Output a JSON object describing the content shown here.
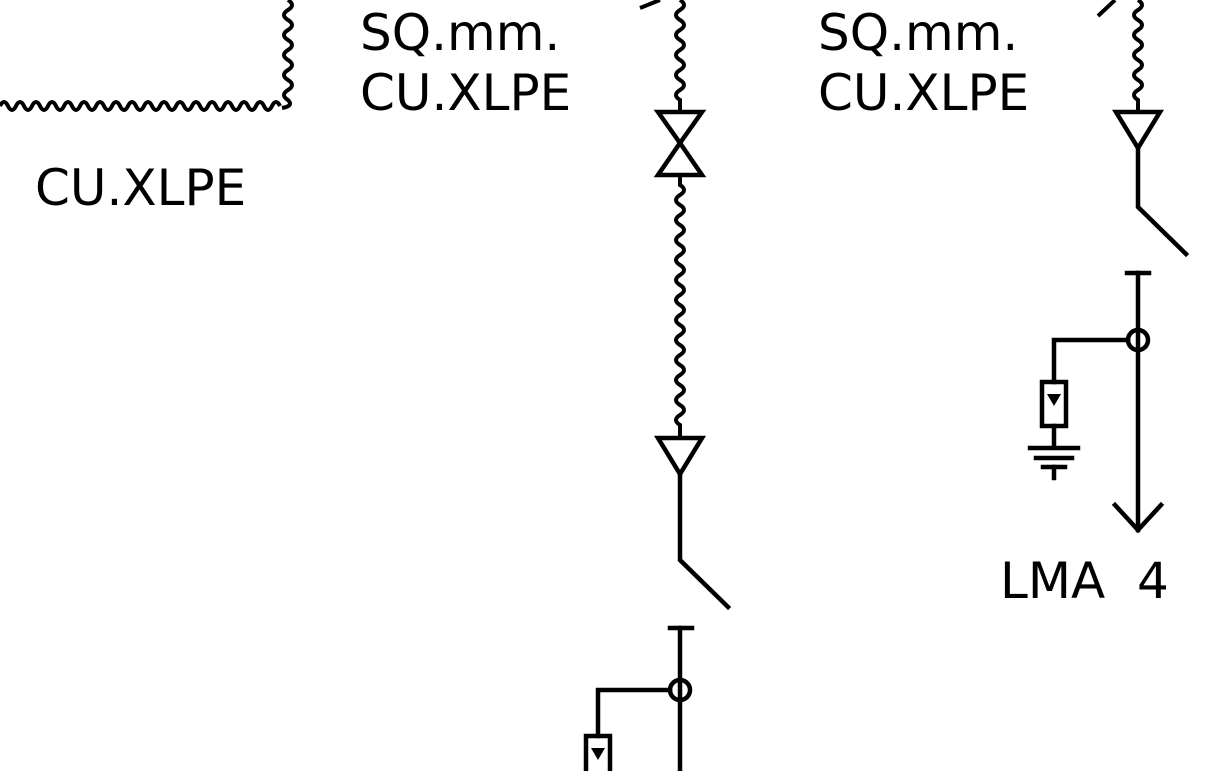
{
  "diagram": {
    "labels": {
      "left_cable_type": "CU.XLPE",
      "middle_size_unit": "SQ.mm.",
      "middle_cable_type": "CU.XLPE",
      "right_size_unit": "SQ.mm.",
      "right_cable_type": "CU.XLPE",
      "right_feeder": "LMA  4"
    }
  }
}
